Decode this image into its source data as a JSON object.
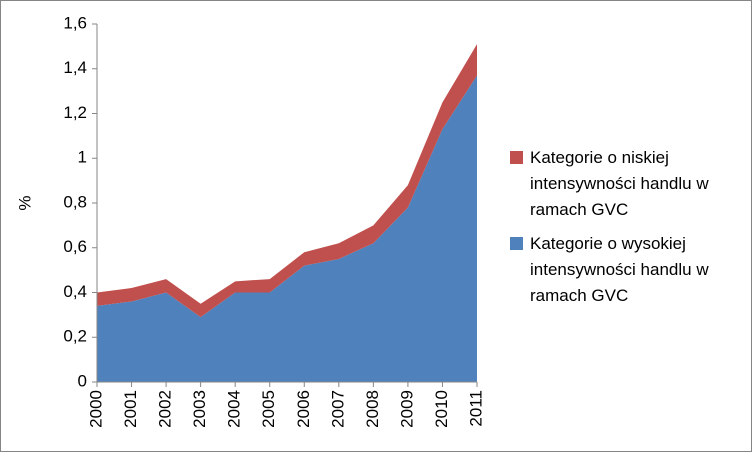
{
  "chart_data": {
    "type": "stacked-area",
    "y_label": "%",
    "categories": [
      "2000",
      "2001",
      "2002",
      "2003",
      "2004",
      "2005",
      "2006",
      "2007",
      "2008",
      "2009",
      "2010",
      "2011"
    ],
    "series": [
      {
        "name": "Kategorie o wysokiej intensywności handlu w ramach GVC",
        "color": "#4f81bd",
        "values": [
          0.34,
          0.36,
          0.4,
          0.29,
          0.4,
          0.4,
          0.52,
          0.55,
          0.62,
          0.78,
          1.13,
          1.37
        ]
      },
      {
        "name": "Kategorie o niskiej intensywności handlu w ramach GVC",
        "color": "#c0504d",
        "values": [
          0.06,
          0.06,
          0.06,
          0.06,
          0.05,
          0.06,
          0.06,
          0.07,
          0.08,
          0.1,
          0.12,
          0.14
        ]
      }
    ],
    "ylim": [
      0,
      1.6
    ],
    "yticks": [
      0,
      {
        "value": 0.2,
        "label": "0,2"
      },
      {
        "value": 0.4,
        "label": "0,4"
      },
      {
        "value": 0.6,
        "label": "0,6"
      },
      {
        "value": 0.8,
        "label": "0,8"
      },
      1,
      {
        "value": 1.2,
        "label": "1,2"
      },
      {
        "value": 1.4,
        "label": "1,4"
      },
      {
        "value": 1.6,
        "label": "1,6"
      }
    ]
  }
}
